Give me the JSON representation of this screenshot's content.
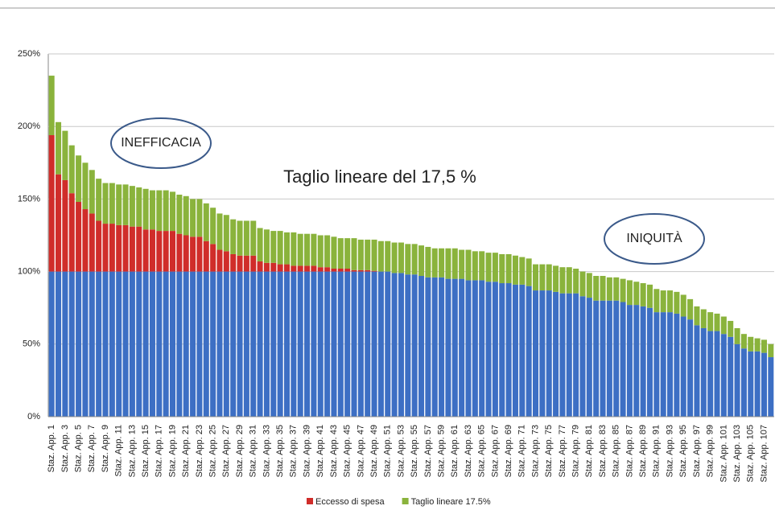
{
  "chart_data": {
    "type": "stacked_bar",
    "title": "Taglio lineare del 17,5 %",
    "annotations": [
      "INEFFICACIA",
      "INIQUITÀ"
    ],
    "categories": [
      "Staz. App. 1",
      null,
      "Staz. App. 3",
      null,
      "Staz. App. 5",
      null,
      "Staz. App. 7",
      null,
      "Staz. App. 9",
      null,
      "Staz. App. 11",
      null,
      "Staz. App. 13",
      null,
      "Staz. App. 15",
      null,
      "Staz. App. 17",
      null,
      "Staz. App. 19",
      null,
      "Staz. App. 21",
      null,
      "Staz. App. 23",
      null,
      "Staz. App. 25",
      null,
      "Staz. App. 27",
      null,
      "Staz. App. 29",
      null,
      "Staz. App. 31",
      null,
      "Staz. App. 33",
      null,
      "Staz. App. 35",
      null,
      "Staz. App. 37",
      null,
      "Staz. App. 39",
      null,
      "Staz. App. 41",
      null,
      "Staz. App. 43",
      null,
      "Staz. App. 45",
      null,
      "Staz. App. 47",
      null,
      "Staz. App. 49",
      null,
      "Staz. App. 51",
      null,
      "Staz. App. 53",
      null,
      "Staz. App. 55",
      null,
      "Staz. App. 57",
      null,
      "Staz. App. 59",
      null,
      "Staz. App. 61",
      null,
      "Staz. App. 63",
      null,
      "Staz. App. 65",
      null,
      "Staz. App. 67",
      null,
      "Staz. App. 69",
      null,
      "Staz. App. 71",
      null,
      "Staz. App. 73",
      null,
      "Staz. App. 75",
      null,
      "Staz. App. 77",
      null,
      "Staz. App. 79",
      null,
      "Staz. App. 81",
      null,
      "Staz. App. 83",
      null,
      "Staz. App. 85",
      null,
      "Staz. App. 87",
      null,
      "Staz. App. 89",
      null,
      "Staz. App. 91",
      null,
      "Staz. App. 93",
      null,
      "Staz. App. 95",
      null,
      "Staz. App. 97",
      null,
      "Staz. App. 99",
      null,
      "Staz. App. 101",
      null,
      "Staz. App. 103",
      null,
      "Staz. App. 105",
      null,
      "Staz. App. 107",
      null
    ],
    "series": [
      {
        "color": "#3d6fc4",
        "values": [
          100,
          100,
          100,
          100,
          100,
          100,
          100,
          100,
          100,
          100,
          100,
          100,
          100,
          100,
          100,
          100,
          100,
          100,
          100,
          100,
          100,
          100,
          100,
          100,
          100,
          100,
          100,
          100,
          100,
          100,
          100,
          100,
          100,
          100,
          100,
          100,
          100,
          100,
          100,
          100,
          100,
          100,
          100,
          100,
          100,
          100,
          100,
          100,
          100,
          100,
          100,
          99,
          99,
          98,
          98,
          97,
          96,
          96,
          96,
          95,
          95,
          95,
          94,
          94,
          94,
          93,
          93,
          92,
          92,
          91,
          91,
          90,
          87,
          87,
          87,
          86,
          85,
          85,
          85,
          83,
          82,
          80,
          80,
          80,
          80,
          79,
          77,
          77,
          76,
          75,
          72,
          72,
          72,
          71,
          69,
          67,
          63,
          61,
          59,
          59,
          57,
          55,
          50,
          47,
          45,
          45,
          44,
          41
        ]
      },
      {
        "name": "Eccesso di spesa",
        "color": "#d02d2a",
        "values": [
          94,
          67,
          63,
          54,
          48,
          43,
          40,
          35,
          33,
          33,
          32,
          32,
          31,
          31,
          29,
          29,
          28,
          28,
          28,
          26,
          25,
          24,
          24,
          21,
          19,
          15,
          14,
          12,
          11,
          11,
          11,
          7,
          6,
          6,
          5,
          5,
          4,
          4,
          4,
          4,
          3,
          3,
          2,
          2,
          2,
          1,
          1,
          1,
          0.5,
          0,
          0,
          0,
          0,
          0,
          0,
          0,
          0,
          0,
          0,
          0,
          0,
          0,
          0,
          0,
          0,
          0,
          0,
          0,
          0,
          0,
          0,
          0,
          0,
          0,
          0,
          0,
          0,
          0,
          0,
          0,
          0,
          0,
          0,
          0,
          0,
          0,
          0,
          0,
          0,
          0,
          0,
          0,
          0,
          0,
          0,
          0,
          0,
          0,
          0,
          0,
          0,
          0,
          0,
          0,
          0,
          0,
          0,
          0
        ]
      },
      {
        "name": "Taglio lineare 17.5%",
        "color": "#8ab33c",
        "values": [
          41,
          36,
          34,
          33,
          32,
          32,
          30,
          29,
          28,
          28,
          28,
          28,
          28,
          27,
          28,
          27,
          28,
          28,
          27,
          27,
          27,
          26,
          26,
          26,
          25,
          25,
          25,
          24,
          24,
          24,
          24,
          23,
          23,
          22,
          23,
          22,
          23,
          22,
          22,
          22,
          22,
          22,
          22,
          21,
          21,
          22,
          21,
          21,
          21.5,
          21,
          21,
          21,
          21,
          21,
          21,
          21,
          21,
          20,
          20,
          21,
          21,
          20,
          21,
          20,
          20,
          20,
          20,
          20,
          20,
          20,
          19,
          19,
          18,
          18,
          18,
          18,
          18,
          18,
          17,
          17,
          17,
          17,
          17,
          16,
          16,
          16,
          17,
          16,
          16,
          16,
          16,
          15,
          15,
          15,
          15,
          14,
          13,
          13,
          13,
          12,
          12,
          11,
          11,
          10,
          10,
          9,
          9,
          9
        ]
      }
    ],
    "ylim": [
      0,
      250
    ],
    "yticks": [
      {
        "value": 0,
        "label": "0%"
      },
      {
        "value": 50,
        "label": "50%"
      },
      {
        "value": 100,
        "label": "100%"
      },
      {
        "value": 150,
        "label": "150%"
      },
      {
        "value": 200,
        "label": "200%"
      },
      {
        "value": 250,
        "label": "250%"
      }
    ],
    "grid": true,
    "legend": "bottom"
  }
}
